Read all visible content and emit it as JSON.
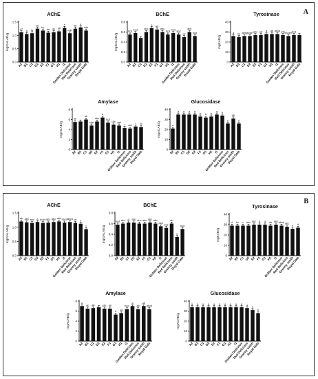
{
  "panels": [
    {
      "label": "A",
      "charts": [
        {
          "type": "bar",
          "title": "AChE",
          "ylabel": "mgGALAE/g",
          "ylim": [
            0,
            1.5
          ],
          "yticks": [
            "0.0",
            "0.5",
            "1.0",
            "1.5"
          ],
          "categories": [
            "A2",
            "B1",
            "C1",
            "D2",
            "E2",
            "F1",
            "G1",
            "H1",
            "I1",
            "Golden Delicious",
            "Red Delicious",
            "Granny smith",
            "Royal Gala"
          ],
          "values": [
            1.12,
            1.05,
            1.08,
            1.25,
            1.18,
            1.1,
            1.12,
            1.15,
            1.28,
            1.08,
            1.25,
            1.3,
            1.18
          ],
          "letters": [
            "ef",
            "g",
            "fg",
            "ab",
            "bc",
            "de",
            "de",
            "cd",
            "a",
            "cde",
            "ab",
            "a",
            "cde"
          ]
        },
        {
          "type": "bar",
          "title": "BChE",
          "ylabel": "mgGALAE/g",
          "ylim": [
            0,
            0.8
          ],
          "yticks": [
            "0.0",
            "0.2",
            "0.4",
            "0.6",
            "0.8"
          ],
          "categories": [
            "A2",
            "B1",
            "C1",
            "D2",
            "E2",
            "F1",
            "G1",
            "H1",
            "I1",
            "Golden Delicious",
            "Red Delicious",
            "Granny smith",
            "Royal Gala"
          ],
          "values": [
            0.55,
            0.58,
            0.48,
            0.6,
            0.68,
            0.65,
            0.6,
            0.55,
            0.58,
            0.55,
            0.5,
            0.6,
            0.52
          ],
          "letters": [
            "bcd",
            "bcd",
            "",
            "abc",
            "a",
            "ab",
            "abc",
            "bcd",
            "bcd",
            "abc",
            "cd",
            "abc",
            "bcd"
          ]
        },
        {
          "type": "bar",
          "title": "Tyrosinase",
          "ylabel": "mgKAE/g",
          "ylim": [
            0,
            40
          ],
          "yticks": [
            "0",
            "10",
            "20",
            "30",
            "40"
          ],
          "categories": [
            "A2",
            "B1",
            "C1",
            "D2",
            "E2",
            "F1",
            "G1",
            "H1",
            "I1",
            "Golden Delicious",
            "Red Delicious",
            "Granny smith",
            "Royal Gala"
          ],
          "values": [
            26,
            25,
            26,
            26,
            27,
            27,
            28,
            28,
            28,
            27,
            26,
            27,
            27
          ],
          "letters": [
            "g",
            "fg",
            "defg",
            "bcde",
            "abc",
            "ab",
            "a",
            "ab",
            "abcd",
            "efg",
            "bcdef",
            "bcd",
            ""
          ]
        },
        {
          "type": "bar",
          "title": "Amylase",
          "ylabel": "mgACAE/g",
          "ylim": [
            0,
            8
          ],
          "yticks": [
            "0",
            "2",
            "4",
            "6",
            "8"
          ],
          "categories": [
            "A2",
            "B1",
            "C1",
            "D2",
            "E2",
            "F1",
            "G1",
            "H1",
            "I1",
            "Golden Delicious",
            "Red Delicious",
            "Granny smith",
            "Royal Gala"
          ],
          "values": [
            5.5,
            5.6,
            6,
            4.8,
            5.6,
            6.4,
            5.4,
            5,
            4.8,
            4.3,
            4.2,
            4.6,
            4.5
          ],
          "letters": [
            "ab",
            "",
            "ab",
            "cde",
            "abc",
            "a",
            "bcd",
            "cde",
            "def",
            "f",
            "def",
            "f",
            "ef"
          ]
        },
        {
          "type": "bar",
          "title": "Glucosidase",
          "ylabel": "mgACAE/g",
          "ylim": [
            0,
            40
          ],
          "yticks": [
            "0",
            "10",
            "20",
            "30",
            "40"
          ],
          "categories": [
            "A2",
            "B1",
            "C1",
            "D2",
            "E2",
            "F1",
            "G1",
            "H1",
            "I1",
            "Golden Delicious",
            "Red Delicious",
            "Granny smith",
            "Royal Gala"
          ],
          "values": [
            21,
            35,
            35,
            35,
            35,
            33,
            32,
            33,
            35,
            34,
            26,
            31,
            26
          ],
          "letters": [
            "d",
            "a",
            "a",
            "a",
            "a",
            "b",
            "b",
            "b",
            "a",
            "a",
            "c",
            "ab",
            "c"
          ]
        }
      ]
    },
    {
      "label": "B",
      "charts": [
        {
          "type": "bar",
          "title": "AChE",
          "ylabel": "mgGALAE/g",
          "ylim": [
            0,
            1.5
          ],
          "yticks": [
            "0.0",
            "0.5",
            "1.0",
            "1.5"
          ],
          "categories": [
            "A2",
            "B1",
            "C1",
            "D2",
            "E2",
            "F1",
            "G1",
            "H1",
            "I1",
            "Golden Delicious",
            "Red Delicious",
            "Granny smith",
            "Royal Gala"
          ],
          "values": [
            1.2,
            1.17,
            1.15,
            1.18,
            1.15,
            1.16,
            1.18,
            1.2,
            1.16,
            1.18,
            1.15,
            1.12,
            0.93
          ],
          "letters": [
            "ab",
            "abc",
            "abc",
            "a",
            "bcde",
            "abc",
            "abc",
            "abc",
            "abcd",
            "abcd",
            "de",
            "e",
            "f"
          ]
        },
        {
          "type": "bar",
          "title": "BChE",
          "ylabel": "mgGALAE/g",
          "ylim": [
            0,
            0.8
          ],
          "yticks": [
            "0.0",
            "0.2",
            "0.4",
            "0.6",
            "0.8"
          ],
          "categories": [
            "A2",
            "B1",
            "C1",
            "D2",
            "E2",
            "F1",
            "G1",
            "H1",
            "I1",
            "Golden Delicious",
            "Red Delicious",
            "Granny smith",
            "Royal Gala"
          ],
          "values": [
            0.58,
            0.6,
            0.62,
            0.62,
            0.6,
            0.6,
            0.62,
            0.6,
            0.55,
            0.52,
            0.6,
            0.35,
            0.5
          ],
          "letters": [
            "bcd",
            "abc",
            "a",
            "abc",
            "abc",
            "abc",
            "abc",
            "abc",
            "abc",
            "cde",
            "ab",
            "e",
            "bcd"
          ]
        },
        {
          "type": "bar",
          "title": "Tyrosinase",
          "ylabel": "mgKAE/g",
          "ylim": [
            0,
            40
          ],
          "yticks": [
            "0",
            "10",
            "20",
            "30",
            "40"
          ],
          "categories": [
            "A2",
            "B1",
            "C1",
            "D2",
            "E2",
            "F1",
            "G1",
            "H1",
            "I1",
            "Golden Delicious",
            "Red Delicious",
            "Granny smith",
            "Royal Gala"
          ],
          "values": [
            29,
            29,
            29,
            29,
            30,
            30,
            30,
            29,
            30,
            29,
            28,
            26,
            27
          ],
          "letters": [
            "d",
            "bc",
            "c",
            "abc",
            "abc",
            "a",
            "a",
            "ab",
            "abc",
            "abcd",
            "abc",
            "e",
            "d"
          ]
        },
        {
          "type": "bar",
          "title": "Amylase",
          "ylabel": "mgACAE/g",
          "ylim": [
            0,
            8
          ],
          "yticks": [
            "0",
            "2",
            "4",
            "6",
            "8"
          ],
          "categories": [
            "A2",
            "B1",
            "C1",
            "D2",
            "E2",
            "F1",
            "G1",
            "H1",
            "I1",
            "Golden Delicious",
            "Red Delicious",
            "Granny smith",
            "Royal Gala"
          ],
          "values": [
            7,
            6.5,
            6.6,
            6.8,
            6.5,
            6.5,
            5.3,
            5.6,
            6.4,
            7,
            6.4,
            7,
            6.4
          ],
          "letters": [
            "a",
            "ab",
            "ab",
            "",
            "abc",
            "ab",
            "d",
            "cd",
            "bcd",
            "a",
            "ab",
            "ab",
            "abcd"
          ]
        },
        {
          "type": "bar",
          "title": "Glucosidase",
          "ylabel": "mgACAE/g",
          "ylim": [
            0,
            40
          ],
          "yticks": [
            "0",
            "10",
            "20",
            "30",
            "40"
          ],
          "categories": [
            "A2",
            "B1",
            "C1",
            "D2",
            "E2",
            "F1",
            "G1",
            "H1",
            "I1",
            "Golden Delicious",
            "Red Delicious",
            "Granny smith",
            "Royal Gala"
          ],
          "values": [
            34,
            34,
            34,
            34,
            34,
            34,
            34,
            34,
            34,
            34,
            33,
            31,
            28
          ],
          "letters": [
            "a",
            "a",
            "a",
            "a",
            "a",
            "a",
            "a",
            "a",
            "a",
            "a",
            "a",
            "a",
            "b"
          ]
        }
      ]
    }
  ]
}
